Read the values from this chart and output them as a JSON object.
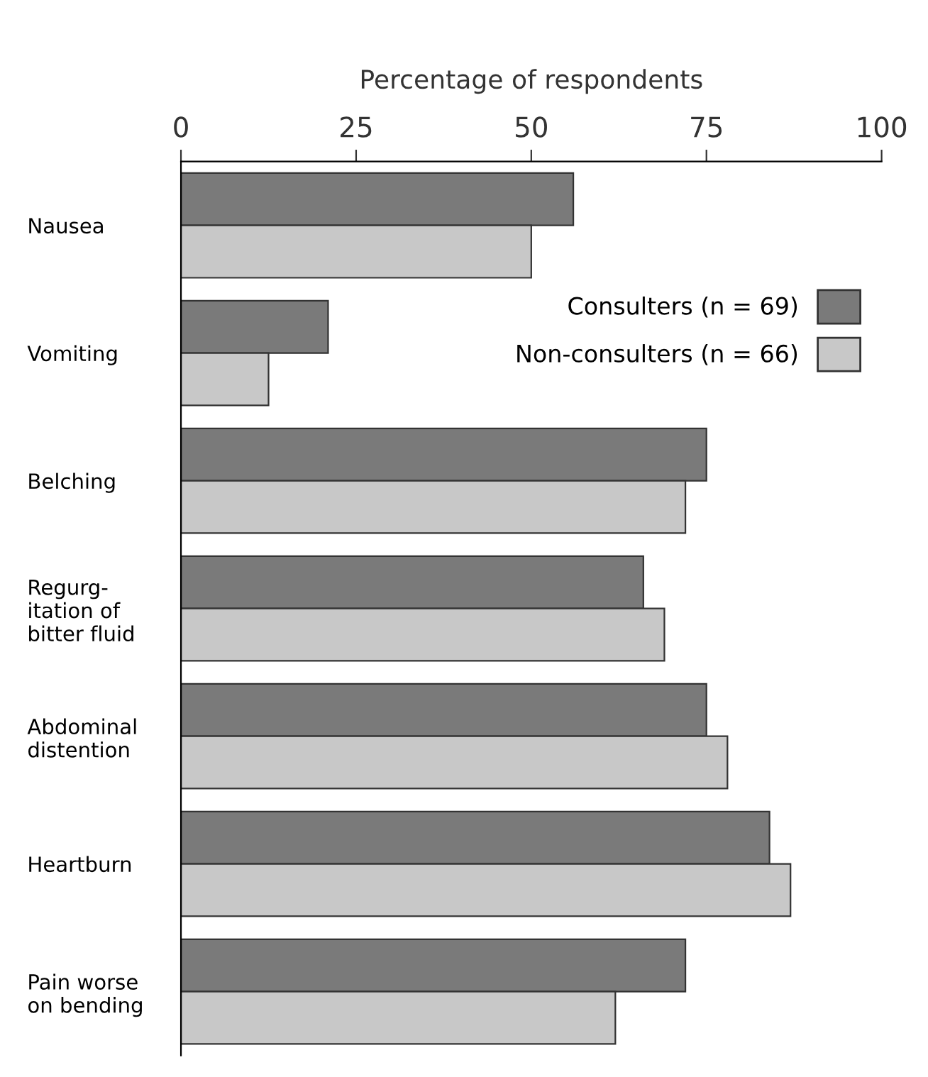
{
  "chart_data": {
    "type": "bar",
    "orientation": "horizontal",
    "xlabel": "Percentage of respondents",
    "categories": [
      "Nausea",
      "Vomiting",
      "Belching",
      "Regurg-\nitation of\nbitter fluid",
      "Abdominal\ndistention",
      "Heartburn",
      "Pain worse\non bending"
    ],
    "series": [
      {
        "name": "Consulters (n = 69)",
        "color": "#7a7a7a",
        "values": [
          56,
          21,
          75,
          66,
          75,
          84,
          72
        ]
      },
      {
        "name": "Non-consulters (n = 66)",
        "color": "#c8c8c8",
        "values": [
          50,
          12.5,
          72,
          69,
          78,
          87,
          62
        ]
      }
    ],
    "xlim": [
      0,
      100
    ],
    "xticks": [
      0,
      25,
      50,
      75,
      100
    ],
    "grid": false,
    "legend": "top right"
  }
}
